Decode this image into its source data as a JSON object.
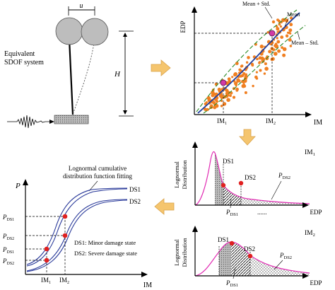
{
  "sdof": {
    "u_label": "u",
    "H_label": "H",
    "system_line1": "Equivalent",
    "system_line2": "SDOF system"
  },
  "scatter_plot": {
    "y_axis": "EDP",
    "x_axis": "IM",
    "legend_upper": "Mean + Std.",
    "legend_mean": "Mean",
    "legend_lower": "Mean – Std.",
    "tick_im1": "IM",
    "tick_im1_sub": "1",
    "tick_im2": "IM",
    "tick_im2_sub": "2",
    "colors": {
      "points": "#f07f21",
      "mean": "#1f3fa0",
      "std": "#3a8a32",
      "markers": "#d23aa6"
    }
  },
  "distributions": [
    {
      "tag": "IM",
      "tag_sub": "1",
      "y_label_line1": "Lognormal",
      "y_label_line2": "Distribution",
      "x_label": "EDP",
      "ds1": "DS1",
      "ds2": "DS2",
      "p_ds2": "P",
      "p_ds2_sub": "DS2",
      "p_ds1": "P",
      "p_ds1_sub": "DS1"
    },
    {
      "tag": "IM",
      "tag_sub": "2",
      "y_label_line1": "Lognormal",
      "y_label_line2": "Distribution",
      "x_label": "EDP",
      "ds1": "DS1",
      "ds2": "DS2",
      "p_ds2": "P",
      "p_ds2_sub": "DS2",
      "p_ds1": "P",
      "p_ds1_sub": "DS1"
    }
  ],
  "between_dots": "......",
  "fragility": {
    "title_line1": "Lognormal cumulative",
    "title_line2": "distribution function fitting",
    "y_axis": "P",
    "x_axis": "IM",
    "curve_ds1": "DS1",
    "curve_ds2": "DS2",
    "ticks": [
      {
        "main": "P",
        "sub": "DS1"
      },
      {
        "main": "P",
        "sub": "DS2"
      },
      {
        "main": "P",
        "sub": "DS1"
      },
      {
        "main": "P",
        "sub": "DS2"
      }
    ],
    "x_ticks": [
      {
        "main": "IM",
        "sub": "1"
      },
      {
        "main": "IM",
        "sub": "2"
      }
    ],
    "note_ds1": "DS1: Minor damage state",
    "note_ds2": "DS2: Severe damage state",
    "colors": {
      "curves": "#2a3a9a",
      "points": "#e02020"
    }
  },
  "arrows_color": "#f5c56e"
}
